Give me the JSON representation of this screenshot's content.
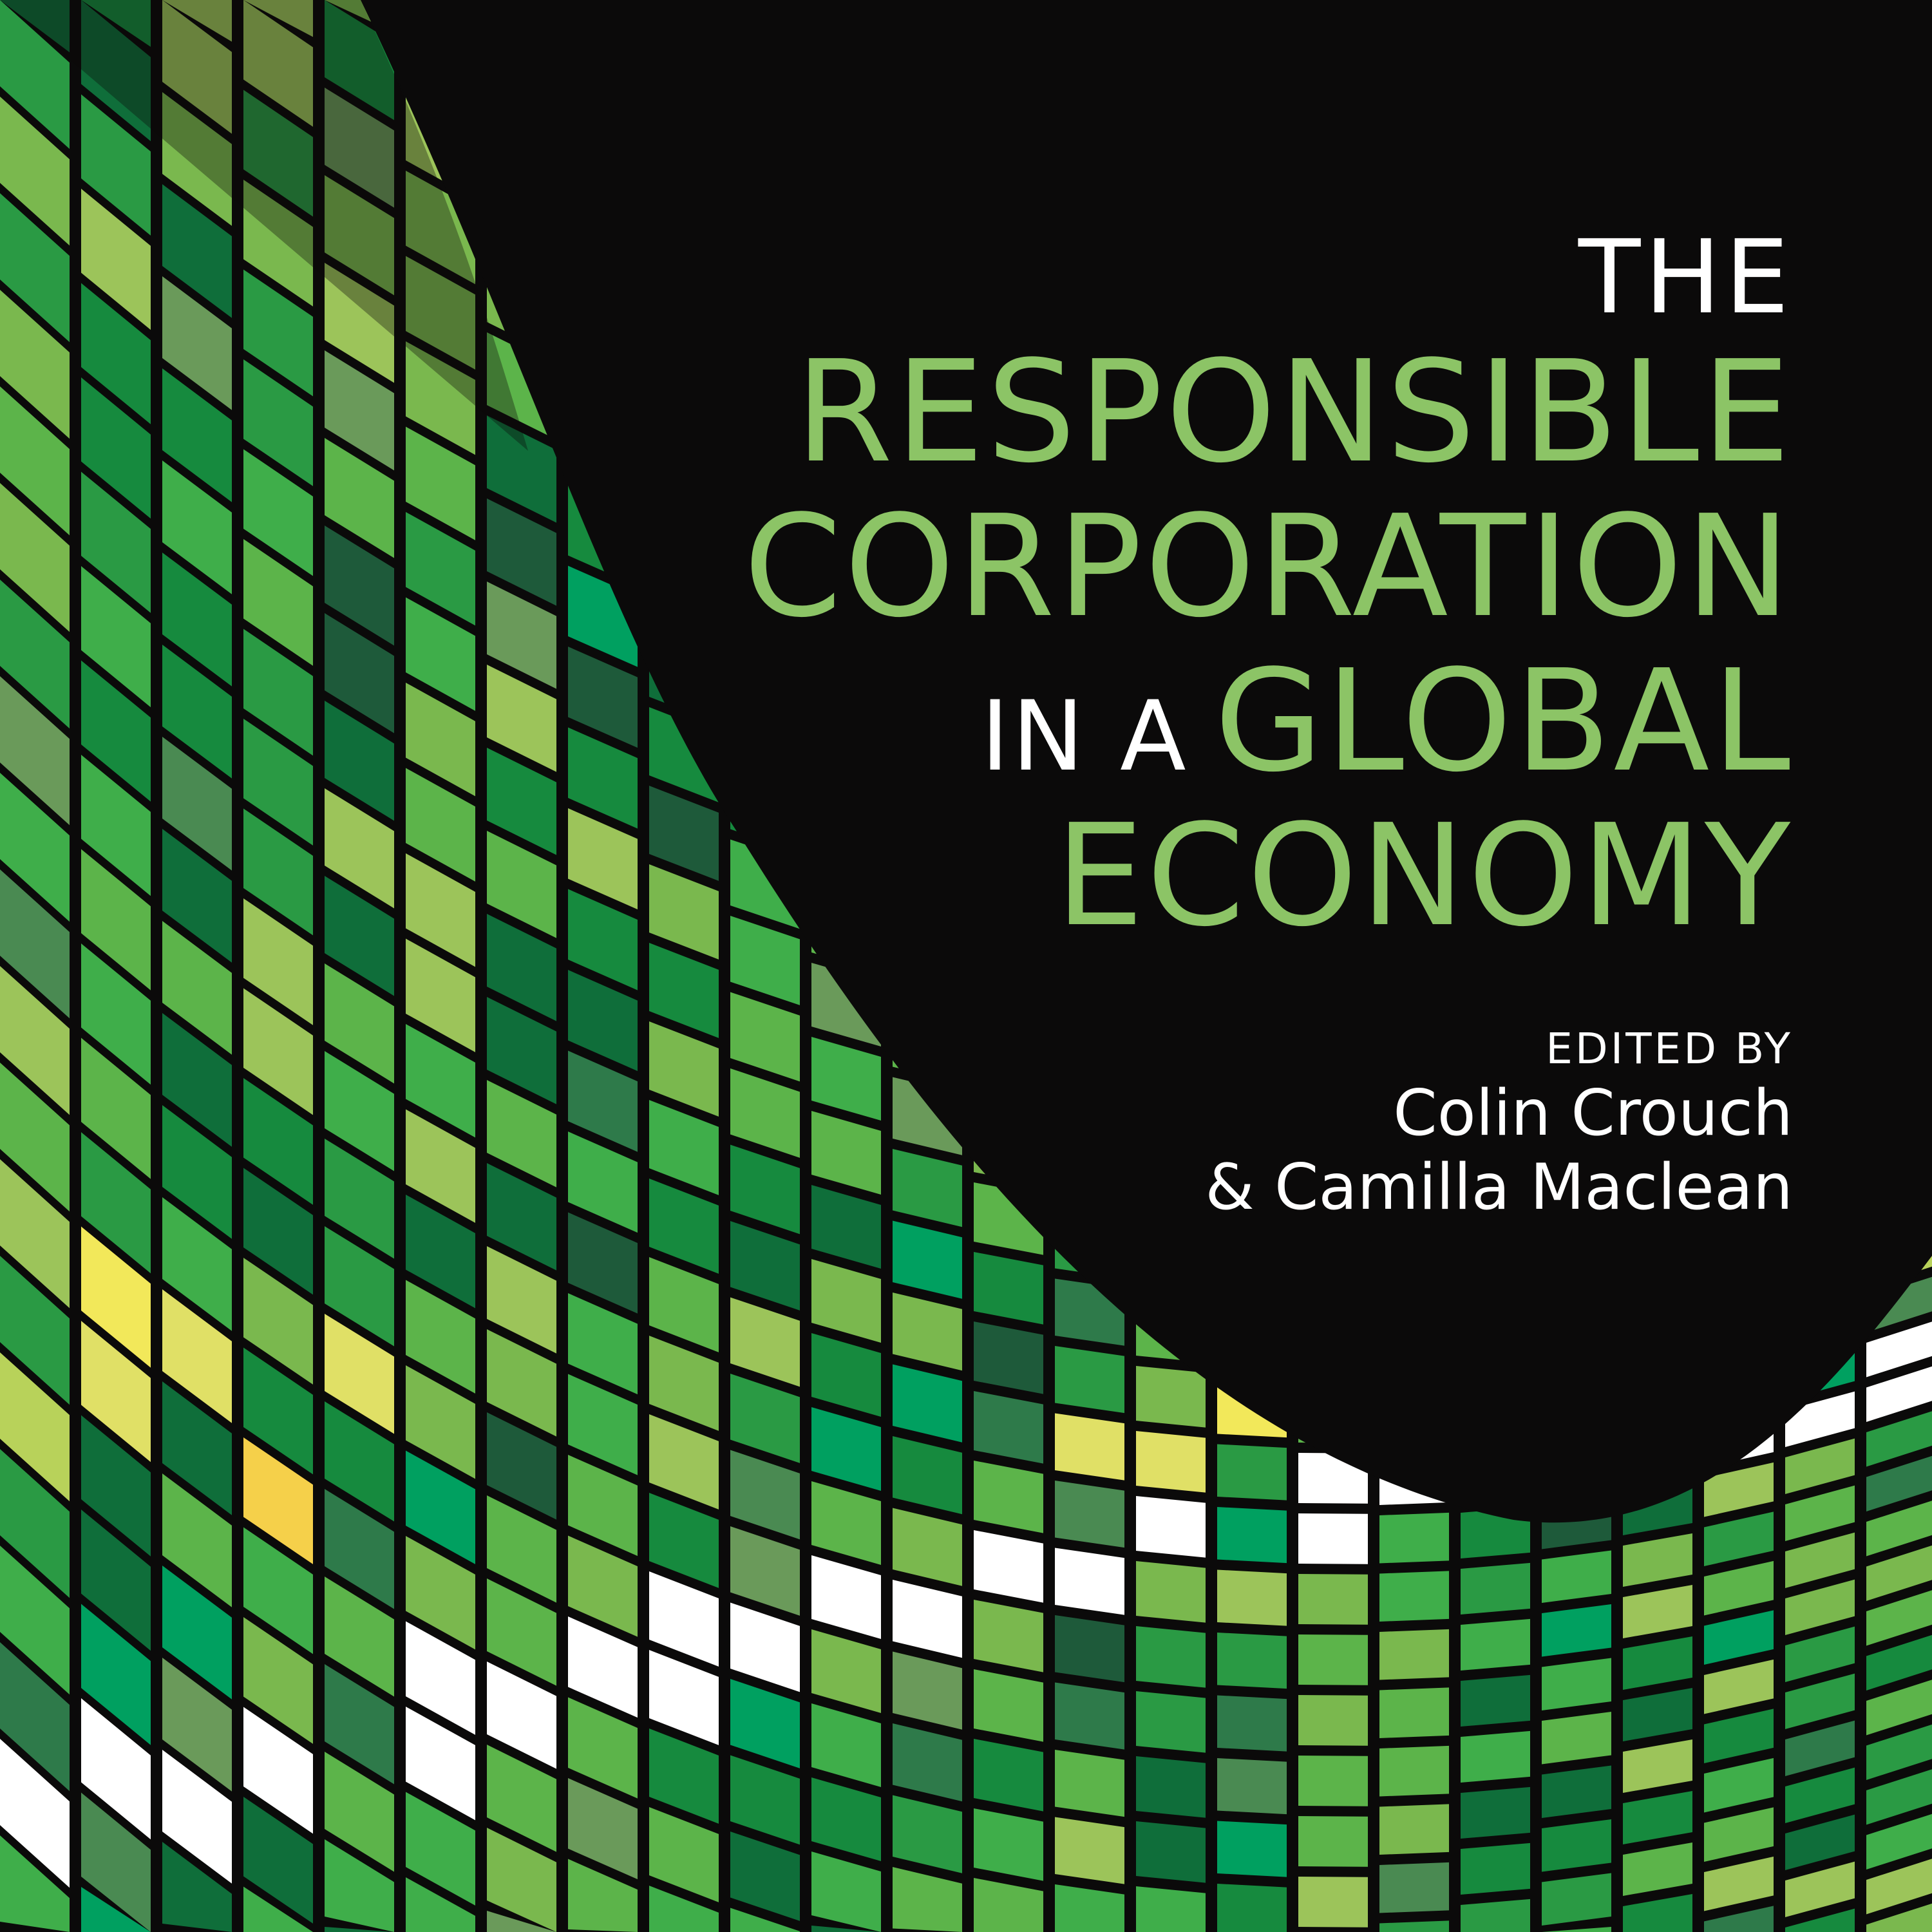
{
  "cover": {
    "title_line1": "THE",
    "title_line2": "RESPONSIBLE",
    "title_line3": "CORPORATION",
    "title_line4_prefix": "IN A",
    "title_line4": "GLOBAL",
    "title_line5": "ECONOMY",
    "edited_by": "EDITED BY",
    "editor1": "Colin Crouch",
    "editor2": "& Camilla Maclean"
  },
  "colors": {
    "background": "#0b0a0a",
    "title_green": "#8cc466",
    "title_white": "#ffffff",
    "tile_palette": [
      "#0f6e3a",
      "#168a3e",
      "#2a9a44",
      "#3fae4a",
      "#5cb44a",
      "#7ab84e",
      "#9cc45a",
      "#b8d25a",
      "#e0e066",
      "#f2e85a",
      "#f5d04a",
      "#f3f0c8",
      "#ffffff",
      "#1e5a3a",
      "#2e7a4a",
      "#4a8a52",
      "#6a9a5a",
      "#00a060"
    ]
  }
}
